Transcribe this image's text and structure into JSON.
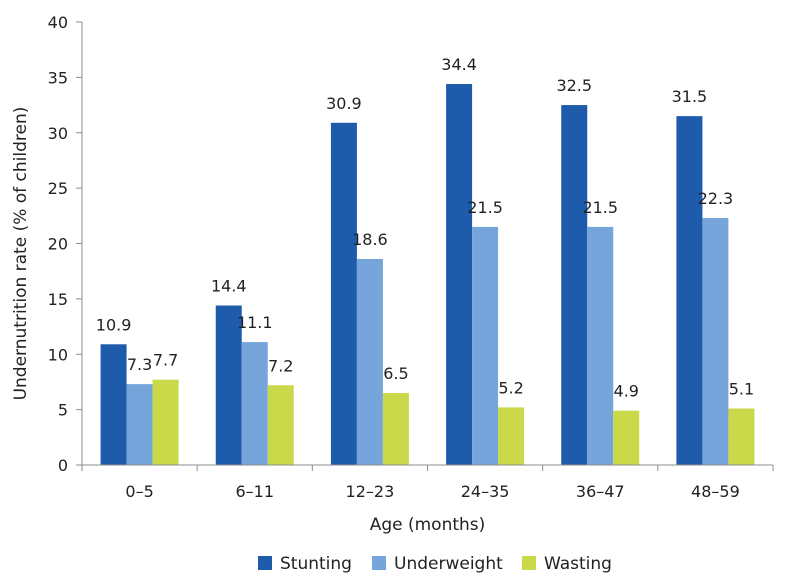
{
  "chart_data": {
    "type": "bar",
    "title": "",
    "xlabel": "Age (months)",
    "ylabel": "Undernutrition rate (% of children)",
    "categories": [
      "0–5",
      "6–11",
      "12–23",
      "24–35",
      "36–47",
      "48–59"
    ],
    "ylim": [
      0,
      40
    ],
    "yticks": [
      "0",
      "5",
      "10",
      "15",
      "20",
      "25",
      "30",
      "35",
      "40"
    ],
    "grid": false,
    "legend_position": "bottom",
    "series": [
      {
        "name": "Stunting",
        "color": "#1f5bab",
        "values": [
          10.9,
          14.4,
          30.9,
          34.4,
          32.5,
          31.5
        ],
        "labels": [
          "10.9",
          "14.4",
          "30.9",
          "34.4",
          "32.5",
          "31.5"
        ]
      },
      {
        "name": "Underweight",
        "color": "#76a5dc",
        "values": [
          7.3,
          11.1,
          18.6,
          21.5,
          21.5,
          22.3
        ],
        "labels": [
          "7.3",
          "11.1",
          "18.6",
          "21.5",
          "21.5",
          "22.3"
        ]
      },
      {
        "name": "Wasting",
        "color": "#c9d94a",
        "values": [
          7.7,
          7.2,
          6.5,
          5.2,
          4.9,
          5.1
        ],
        "labels": [
          "7.7",
          "7.2",
          "6.5",
          "5.2",
          "4.9",
          "5.1"
        ]
      }
    ]
  }
}
